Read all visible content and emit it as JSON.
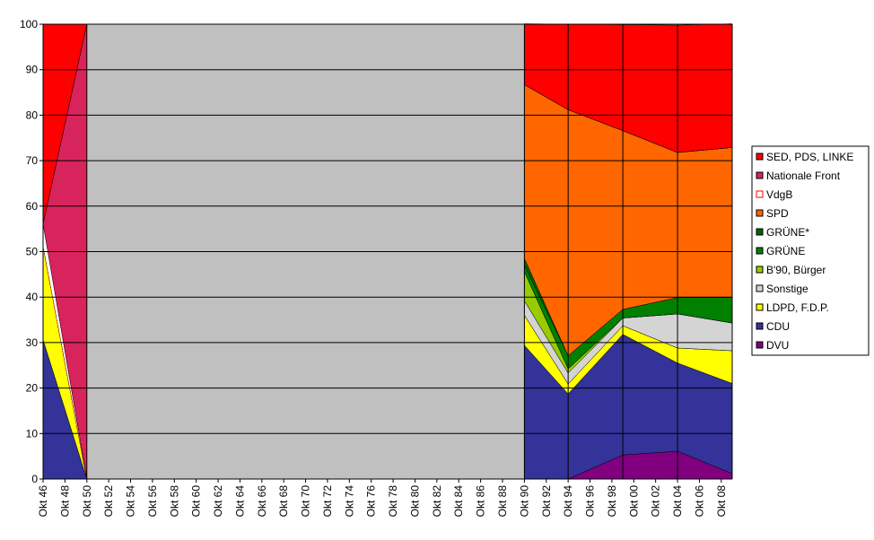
{
  "chart_data": {
    "type": "stacked_area",
    "x": [
      1946,
      1950,
      1990,
      1994,
      1999,
      2004,
      2009
    ],
    "xlim": [
      1946,
      2009
    ],
    "xticks": [
      {
        "value": 1946,
        "label": "Okt 46"
      },
      {
        "value": 1948,
        "label": "Okt 48"
      },
      {
        "value": 1950,
        "label": "Okt 50"
      },
      {
        "value": 1952,
        "label": "Okt 52"
      },
      {
        "value": 1954,
        "label": "Okt 54"
      },
      {
        "value": 1956,
        "label": "Okt 56"
      },
      {
        "value": 1958,
        "label": "Okt 58"
      },
      {
        "value": 1960,
        "label": "Okt 60"
      },
      {
        "value": 1962,
        "label": "Okt 62"
      },
      {
        "value": 1964,
        "label": "Okt 64"
      },
      {
        "value": 1966,
        "label": "Okt 66"
      },
      {
        "value": 1968,
        "label": "Okt 68"
      },
      {
        "value": 1970,
        "label": "Okt 70"
      },
      {
        "value": 1972,
        "label": "Okt 72"
      },
      {
        "value": 1974,
        "label": "Okt 74"
      },
      {
        "value": 1976,
        "label": "Okt 76"
      },
      {
        "value": 1978,
        "label": "Okt 78"
      },
      {
        "value": 1980,
        "label": "Okt 80"
      },
      {
        "value": 1982,
        "label": "Okt 82"
      },
      {
        "value": 1984,
        "label": "Okt 84"
      },
      {
        "value": 1986,
        "label": "Okt 86"
      },
      {
        "value": 1988,
        "label": "Okt 88"
      },
      {
        "value": 1990,
        "label": "Okt 90"
      },
      {
        "value": 1992,
        "label": "Okt 92"
      },
      {
        "value": 1994,
        "label": "Okt 94"
      },
      {
        "value": 1996,
        "label": "Okt 96"
      },
      {
        "value": 1998,
        "label": "Okt 98"
      },
      {
        "value": 2000,
        "label": "Okt 00"
      },
      {
        "value": 2002,
        "label": "Okt 02"
      },
      {
        "value": 2004,
        "label": "Okt 04"
      },
      {
        "value": 2006,
        "label": "Okt 06"
      },
      {
        "value": 2008,
        "label": "Okt 08"
      }
    ],
    "ylim": [
      0,
      100
    ],
    "yticks": [
      0,
      10,
      20,
      30,
      40,
      50,
      60,
      70,
      80,
      90,
      100
    ],
    "grid": true,
    "legend": "right",
    "series": [
      {
        "name": "SED, PDS, LINKE",
        "color": "#ff0000",
        "values": [
          43.9,
          0,
          13.4,
          18.8,
          23.3,
          28.0,
          27.2
        ]
      },
      {
        "name": "Nationale Front",
        "color": "#d8245c",
        "values": [
          0,
          100,
          0,
          0,
          0,
          0,
          0
        ]
      },
      {
        "name": "VdgB",
        "color": "#ffffff",
        "values": [
          4.9,
          0,
          0,
          0,
          0,
          0,
          0
        ]
      },
      {
        "name": "SPD",
        "color": "#ff6600",
        "values": [
          0,
          0,
          38.2,
          54.1,
          39.3,
          31.9,
          33.0
        ]
      },
      {
        "name": "GRÜNE*",
        "color": "#006600",
        "values": [
          0,
          0,
          1.4,
          0,
          0,
          0,
          0
        ]
      },
      {
        "name": "GRÜNE",
        "color": "#008000",
        "values": [
          0,
          0,
          1.5,
          2.9,
          1.9,
          3.6,
          5.6
        ]
      },
      {
        "name": "B'90, Bürger",
        "color": "#99cc00",
        "values": [
          0,
          0,
          6.4,
          0.9,
          0,
          0,
          0
        ]
      },
      {
        "name": "Sonstige",
        "color": "#d4d4d4",
        "values": [
          0,
          0,
          3.2,
          2.4,
          1.7,
          7.5,
          6.1
        ]
      },
      {
        "name": "LDPD, F.D.P.",
        "color": "#ffff00",
        "values": [
          20.6,
          0,
          6.6,
          2.2,
          1.9,
          3.3,
          7.2
        ]
      },
      {
        "name": "CDU",
        "color": "#333399",
        "values": [
          30.6,
          0,
          29.4,
          18.7,
          26.5,
          19.4,
          19.8
        ]
      },
      {
        "name": "DVU",
        "color": "#800080",
        "values": [
          0,
          0,
          0,
          0,
          5.3,
          6.1,
          1.2
        ]
      }
    ]
  }
}
